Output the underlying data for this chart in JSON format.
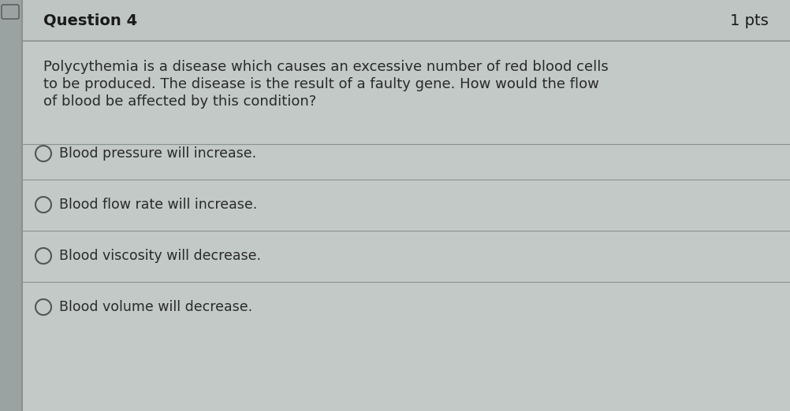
{
  "question_label": "Question 4",
  "points_label": "1 pts",
  "question_text_lines": [
    "Polycythemia is a disease which causes an excessive number of red blood cells",
    "to be produced. The disease is the result of a faulty gene. How would the flow",
    "of blood be affected by this condition?"
  ],
  "options": [
    "Blood pressure will increase.",
    "Blood flow rate will increase.",
    "Blood viscosity will decrease.",
    "Blood volume will decrease."
  ],
  "bg_color": "#b0b8b8",
  "card_color": "#c2c9c7",
  "header_color": "#bec5c3",
  "left_strip_color": "#9aa3a2",
  "divider_color": "#8a9290",
  "text_color": "#2a2a2a",
  "header_text_color": "#1a1a1a",
  "option_text_color": "#2a2a2a",
  "circle_edge_color": "#555555",
  "font_size_header": 14,
  "font_size_question": 13,
  "font_size_options": 12.5
}
